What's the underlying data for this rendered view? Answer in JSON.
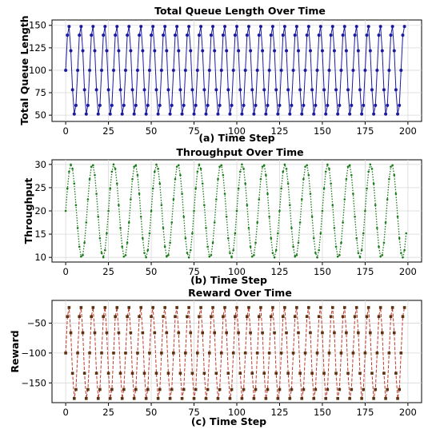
{
  "chart_data": [
    {
      "type": "line",
      "title": "Total Queue Length Over Time",
      "xlabel": "(a) Time Step",
      "ylabel": "Total Queue Length",
      "xlim": [
        -8,
        208
      ],
      "ylim": [
        43,
        156
      ],
      "xticks": [
        0,
        25,
        50,
        75,
        100,
        125,
        150,
        175,
        200
      ],
      "yticks": [
        50,
        75,
        100,
        125,
        150
      ],
      "xtick_labels": [
        "0",
        "25",
        "50",
        "75",
        "100",
        "125",
        "150",
        "175",
        "200"
      ],
      "ytick_labels": [
        "50",
        "75",
        "100",
        "125",
        "150"
      ],
      "grid": true,
      "series": [
        {
          "color": "#1a1aa0",
          "marker": "circle",
          "x_start": 0,
          "x_end": 198,
          "model": "y = 100 + 50*sin(2*pi*x/7), clipped roughly to 50..150",
          "values_first_period": [
            100,
            143,
            145,
            106,
            61,
            53,
            88
          ]
        }
      ]
    },
    {
      "type": "line",
      "title": "Throughput Over Time",
      "xlabel": "(b) Time Step",
      "ylabel": "Throughput",
      "xlim": [
        -8,
        208
      ],
      "ylim": [
        9,
        31
      ],
      "xticks": [
        0,
        25,
        50,
        75,
        100,
        125,
        150,
        175,
        200
      ],
      "yticks": [
        10,
        15,
        20,
        25,
        30
      ],
      "xtick_labels": [
        "0",
        "25",
        "50",
        "75",
        "100",
        "125",
        "150",
        "175",
        "200"
      ],
      "ytick_labels": [
        "10",
        "15",
        "20",
        "25",
        "30"
      ],
      "grid": true,
      "series": [
        {
          "color": "#1a7a1a",
          "line_style": "dotted",
          "marker": "dot",
          "x_start": 0,
          "x_end": 199,
          "model": "y = 20 + 10*sin(2*pi*x/12.5)",
          "period": 12.5,
          "amplitude": 10,
          "offset": 20
        }
      ]
    },
    {
      "type": "line",
      "title": "Reward Over Time",
      "xlabel": "(c) Time Step",
      "ylabel": "Reward",
      "xlim": [
        -8,
        208
      ],
      "ylim": [
        -183,
        -12
      ],
      "xticks": [
        0,
        25,
        50,
        75,
        100,
        125,
        150,
        175,
        200
      ],
      "yticks": [
        -50,
        -100,
        -150
      ],
      "xtick_labels": [
        "0",
        "25",
        "50",
        "75",
        "100",
        "125",
        "150",
        "175",
        "200"
      ],
      "ytick_labels": [
        "−50",
        "−100",
        "−150"
      ],
      "grid": true,
      "series": [
        {
          "color": "#c0392b",
          "marker_color": "#5a3210",
          "line_style": "dashed",
          "marker": "square",
          "x_start": 0,
          "x_end": 198,
          "model": "y = -100 + 78*sin(2*pi*x/7)",
          "values_first_period": [
            -100,
            -47,
            -23,
            -85,
            -175,
            -170,
            -115
          ]
        }
      ]
    }
  ]
}
